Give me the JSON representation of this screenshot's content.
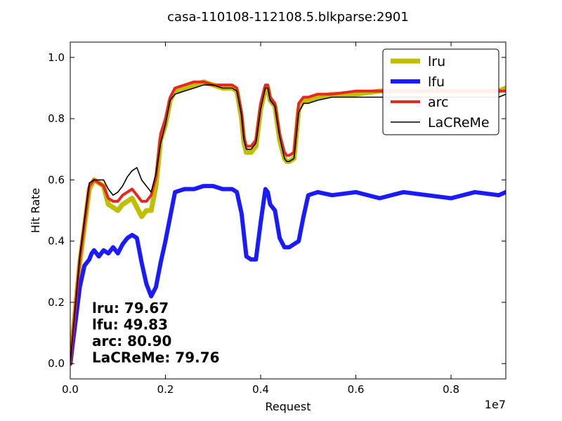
{
  "chart_data": {
    "type": "line",
    "title": "casa-110108-112108.5.blkparse:2901",
    "xlabel": "Request",
    "ylabel": "Hit Rate",
    "x_offset_label": "1e7",
    "xlim": [
      0,
      9150000.0
    ],
    "ylim": [
      -0.05,
      1.05
    ],
    "x_ticks": [
      0,
      2000000,
      4000000,
      6000000,
      8000000
    ],
    "x_tick_labels": [
      "0.0",
      "0.2",
      "0.4",
      "0.6",
      "0.8"
    ],
    "y_ticks": [
      0.0,
      0.2,
      0.4,
      0.6,
      0.8,
      1.0
    ],
    "y_tick_labels": [
      "0.0",
      "0.2",
      "0.4",
      "0.6",
      "0.8",
      "1.0"
    ],
    "grid": false,
    "legend_position": "top-right",
    "series": [
      {
        "name": "lru",
        "color": "#bfbf00",
        "x": [
          0,
          200000,
          400000,
          500000,
          600000,
          700000,
          800000,
          900000,
          1000000,
          1100000,
          1200000,
          1300000,
          1400000,
          1500000,
          1600000,
          1700000,
          1800000,
          1900000,
          2000000,
          2100000,
          2200000,
          2400000,
          2600000,
          2800000,
          3000000,
          3200000,
          3400000,
          3500000,
          3600000,
          3650000,
          3700000,
          3800000,
          3900000,
          4000000,
          4100000,
          4150000,
          4200000,
          4300000,
          4400000,
          4500000,
          4550000,
          4600000,
          4700000,
          4800000,
          4900000,
          5000000,
          5200000,
          5500000,
          6000000,
          6500000,
          7000000,
          7500000,
          8000000,
          8500000,
          9000000,
          9150000
        ],
        "values": [
          0.0,
          0.33,
          0.57,
          0.6,
          0.59,
          0.58,
          0.52,
          0.51,
          0.5,
          0.52,
          0.53,
          0.54,
          0.51,
          0.48,
          0.5,
          0.5,
          0.58,
          0.73,
          0.78,
          0.86,
          0.89,
          0.9,
          0.91,
          0.92,
          0.91,
          0.9,
          0.9,
          0.89,
          0.8,
          0.72,
          0.69,
          0.69,
          0.71,
          0.83,
          0.9,
          0.9,
          0.86,
          0.84,
          0.73,
          0.67,
          0.66,
          0.66,
          0.67,
          0.83,
          0.86,
          0.86,
          0.87,
          0.88,
          0.88,
          0.89,
          0.89,
          0.89,
          0.89,
          0.89,
          0.89,
          0.9
        ]
      },
      {
        "name": "lfu",
        "color": "#1a1aff",
        "x": [
          0,
          200000,
          300000,
          400000,
          450000,
          500000,
          600000,
          700000,
          800000,
          900000,
          1000000,
          1100000,
          1200000,
          1300000,
          1400000,
          1500000,
          1600000,
          1700000,
          1800000,
          1900000,
          2000000,
          2100000,
          2200000,
          2400000,
          2600000,
          2800000,
          3000000,
          3200000,
          3400000,
          3500000,
          3600000,
          3700000,
          3800000,
          3900000,
          4000000,
          4100000,
          4150000,
          4200000,
          4300000,
          4400000,
          4500000,
          4600000,
          4700000,
          4800000,
          4900000,
          5000000,
          5200000,
          5500000,
          6000000,
          6500000,
          7000000,
          7500000,
          8000000,
          8500000,
          9000000,
          9150000
        ],
        "values": [
          0.0,
          0.25,
          0.32,
          0.34,
          0.36,
          0.37,
          0.35,
          0.37,
          0.36,
          0.38,
          0.36,
          0.39,
          0.41,
          0.42,
          0.41,
          0.33,
          0.26,
          0.22,
          0.25,
          0.33,
          0.4,
          0.48,
          0.56,
          0.57,
          0.57,
          0.58,
          0.58,
          0.57,
          0.57,
          0.56,
          0.49,
          0.35,
          0.34,
          0.34,
          0.46,
          0.57,
          0.56,
          0.52,
          0.5,
          0.41,
          0.38,
          0.38,
          0.39,
          0.4,
          0.48,
          0.55,
          0.56,
          0.55,
          0.56,
          0.54,
          0.56,
          0.55,
          0.54,
          0.56,
          0.55,
          0.56
        ]
      },
      {
        "name": "arc",
        "color": "#e8281e",
        "x": [
          0,
          200000,
          400000,
          500000,
          600000,
          700000,
          800000,
          900000,
          1000000,
          1100000,
          1200000,
          1300000,
          1400000,
          1500000,
          1600000,
          1700000,
          1800000,
          1900000,
          2000000,
          2100000,
          2200000,
          2400000,
          2600000,
          2800000,
          3000000,
          3200000,
          3400000,
          3500000,
          3600000,
          3650000,
          3700000,
          3800000,
          3900000,
          4000000,
          4100000,
          4150000,
          4200000,
          4300000,
          4400000,
          4500000,
          4550000,
          4600000,
          4700000,
          4800000,
          4900000,
          5000000,
          5200000,
          5500000,
          6000000,
          6500000,
          7000000,
          7500000,
          8000000,
          8500000,
          9000000,
          9150000
        ],
        "values": [
          0.0,
          0.34,
          0.58,
          0.6,
          0.59,
          0.58,
          0.54,
          0.53,
          0.53,
          0.55,
          0.56,
          0.57,
          0.55,
          0.53,
          0.53,
          0.55,
          0.61,
          0.75,
          0.8,
          0.87,
          0.9,
          0.91,
          0.92,
          0.92,
          0.91,
          0.91,
          0.91,
          0.9,
          0.82,
          0.74,
          0.71,
          0.71,
          0.73,
          0.85,
          0.91,
          0.91,
          0.87,
          0.85,
          0.75,
          0.69,
          0.68,
          0.68,
          0.69,
          0.85,
          0.87,
          0.87,
          0.88,
          0.88,
          0.89,
          0.89,
          0.89,
          0.89,
          0.89,
          0.89,
          0.89,
          0.89
        ]
      },
      {
        "name": "LaCReMe",
        "color": "#000000",
        "x": [
          0,
          200000,
          400000,
          500000,
          600000,
          700000,
          800000,
          900000,
          1000000,
          1100000,
          1200000,
          1300000,
          1400000,
          1500000,
          1600000,
          1700000,
          1800000,
          1900000,
          2000000,
          2100000,
          2200000,
          2400000,
          2600000,
          2800000,
          3000000,
          3200000,
          3400000,
          3500000,
          3600000,
          3650000,
          3700000,
          3800000,
          3900000,
          4000000,
          4100000,
          4150000,
          4200000,
          4300000,
          4400000,
          4500000,
          4550000,
          4600000,
          4700000,
          4800000,
          4900000,
          5000000,
          5200000,
          5500000,
          6000000,
          6500000,
          7000000,
          7500000,
          8000000,
          8500000,
          9000000,
          9150000
        ],
        "values": [
          0.0,
          0.35,
          0.59,
          0.6,
          0.6,
          0.6,
          0.57,
          0.55,
          0.56,
          0.58,
          0.61,
          0.63,
          0.64,
          0.6,
          0.58,
          0.56,
          0.62,
          0.72,
          0.78,
          0.86,
          0.88,
          0.89,
          0.9,
          0.91,
          0.91,
          0.9,
          0.9,
          0.89,
          0.81,
          0.73,
          0.7,
          0.7,
          0.72,
          0.83,
          0.9,
          0.9,
          0.86,
          0.84,
          0.74,
          0.67,
          0.66,
          0.66,
          0.67,
          0.82,
          0.85,
          0.85,
          0.86,
          0.87,
          0.87,
          0.87,
          0.87,
          0.87,
          0.87,
          0.87,
          0.87,
          0.88
        ]
      }
    ],
    "annotations": [
      {
        "label": "lru:",
        "value": "79.67"
      },
      {
        "label": "lfu:",
        "value": "49.83"
      },
      {
        "label": "arc:",
        "value": "80.90"
      },
      {
        "label": "LaCReMe:",
        "value": "79.76"
      }
    ]
  }
}
